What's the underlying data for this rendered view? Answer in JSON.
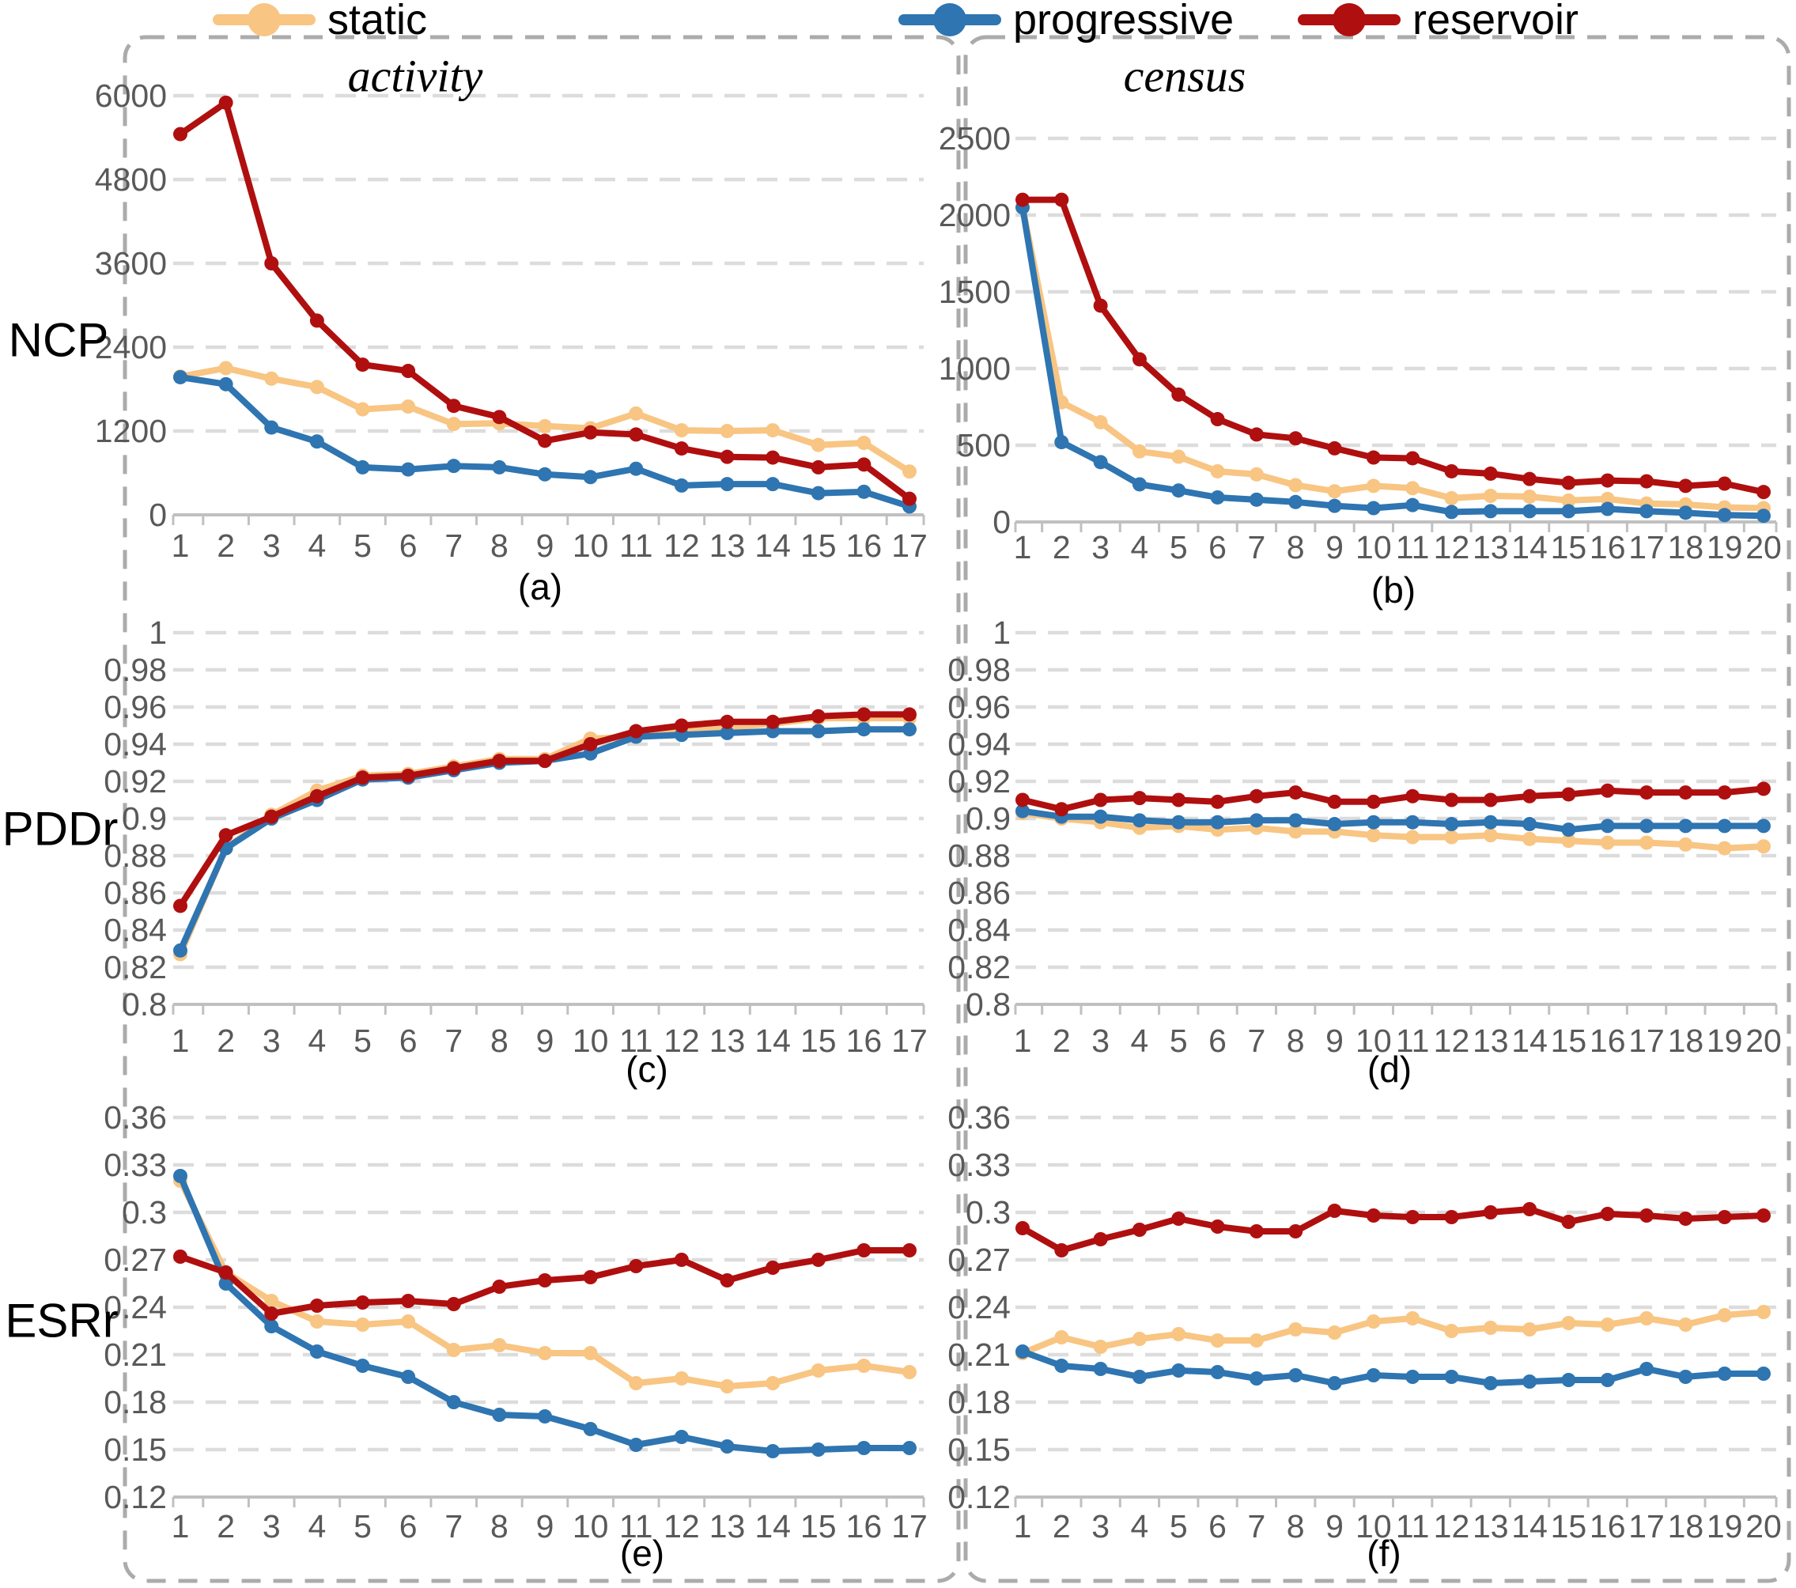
{
  "legend": {
    "position": "top",
    "items": [
      {
        "label": "static",
        "color": "#F8C583"
      },
      {
        "label": "progressive",
        "color": "#2E75B1"
      },
      {
        "label": "reservoir",
        "color": "#B00F0F"
      }
    ]
  },
  "panels": [
    {
      "title": "activity"
    },
    {
      "title": "census"
    }
  ],
  "row_labels": [
    "NCP",
    "PDDr",
    "ESRr"
  ],
  "colors": {
    "static": "#F8C583",
    "progressive": "#2E75B1",
    "reservoir": "#B00F0F",
    "gridline": "#DCDCDC",
    "axis": "#C0C0C0",
    "tick_text": "#595959",
    "panel_border": "#ABABAB"
  },
  "chart_data": [
    {
      "id": "a",
      "caption": "(a)",
      "type": "line",
      "panel": "activity",
      "metric": "NCP",
      "grid": true,
      "legend_position": "top",
      "x": [
        1,
        2,
        3,
        4,
        5,
        6,
        7,
        8,
        9,
        10,
        11,
        12,
        13,
        14,
        15,
        16,
        17
      ],
      "ylim": [
        0,
        6000
      ],
      "y_ticks": [
        6000,
        4800,
        3600,
        2400,
        1200,
        0
      ],
      "y_tick_labels": [
        "6000",
        "4800",
        "3600",
        "2400",
        "1200",
        "0"
      ],
      "series": [
        {
          "name": "static",
          "values": [
            1980,
            2100,
            1950,
            1830,
            1510,
            1550,
            1300,
            1310,
            1270,
            1240,
            1450,
            1210,
            1200,
            1210,
            1000,
            1030,
            620
          ]
        },
        {
          "name": "progressive",
          "values": [
            1970,
            1870,
            1250,
            1050,
            680,
            650,
            700,
            680,
            580,
            540,
            660,
            420,
            440,
            440,
            310,
            330,
            120
          ]
        },
        {
          "name": "reservoir",
          "values": [
            5450,
            5900,
            3600,
            2780,
            2150,
            2060,
            1560,
            1400,
            1060,
            1180,
            1150,
            950,
            830,
            820,
            680,
            720,
            230
          ]
        }
      ]
    },
    {
      "id": "b",
      "caption": "(b)",
      "type": "line",
      "panel": "census",
      "metric": "NCP",
      "grid": true,
      "legend_position": "top",
      "x": [
        1,
        2,
        3,
        4,
        5,
        6,
        7,
        8,
        9,
        10,
        11,
        12,
        13,
        14,
        15,
        16,
        17,
        18,
        19,
        20
      ],
      "ylim": [
        0,
        2500
      ],
      "y_ticks": [
        2500,
        2000,
        1500,
        1000,
        500,
        0
      ],
      "y_tick_labels": [
        "2500",
        "2000",
        "1500",
        "1000",
        "500",
        "0"
      ],
      "series": [
        {
          "name": "static",
          "values": [
            2050,
            780,
            650,
            460,
            425,
            330,
            310,
            240,
            200,
            235,
            220,
            155,
            170,
            165,
            140,
            150,
            120,
            115,
            95,
            90
          ]
        },
        {
          "name": "progressive",
          "values": [
            2050,
            520,
            390,
            245,
            205,
            160,
            145,
            130,
            105,
            90,
            110,
            65,
            70,
            70,
            70,
            85,
            70,
            60,
            45,
            40
          ]
        },
        {
          "name": "reservoir",
          "values": [
            2100,
            2100,
            1410,
            1060,
            830,
            670,
            570,
            545,
            480,
            420,
            415,
            330,
            315,
            280,
            255,
            270,
            265,
            235,
            250,
            195
          ]
        }
      ]
    },
    {
      "id": "c",
      "caption": "(c)",
      "type": "line",
      "panel": "activity",
      "metric": "PDDr",
      "grid": true,
      "legend_position": "top",
      "x": [
        1,
        2,
        3,
        4,
        5,
        6,
        7,
        8,
        9,
        10,
        11,
        12,
        13,
        14,
        15,
        16,
        17
      ],
      "ylim": [
        0.8,
        1.0
      ],
      "y_ticks": [
        1,
        0.98,
        0.96,
        0.94,
        0.92,
        0.9,
        0.88,
        0.86,
        0.84,
        0.82,
        0.8
      ],
      "y_tick_labels": [
        "1",
        "0.98",
        "0.96",
        "0.94",
        "0.92",
        "0.9",
        "0.88",
        "0.86",
        "0.84",
        "0.82",
        "0.8"
      ],
      "series": [
        {
          "name": "static",
          "values": [
            0.827,
            0.884,
            0.902,
            0.915,
            0.923,
            0.924,
            0.928,
            0.932,
            0.932,
            0.943,
            0.944,
            0.947,
            0.949,
            0.951,
            0.954,
            0.954,
            0.954
          ]
        },
        {
          "name": "progressive",
          "values": [
            0.829,
            0.884,
            0.9,
            0.91,
            0.921,
            0.922,
            0.926,
            0.93,
            0.931,
            0.935,
            0.944,
            0.945,
            0.946,
            0.947,
            0.947,
            0.948,
            0.948
          ]
        },
        {
          "name": "reservoir",
          "values": [
            0.853,
            0.891,
            0.901,
            0.912,
            0.922,
            0.923,
            0.927,
            0.931,
            0.931,
            0.94,
            0.947,
            0.95,
            0.952,
            0.952,
            0.955,
            0.956,
            0.956
          ]
        }
      ]
    },
    {
      "id": "d",
      "caption": "(d)",
      "type": "line",
      "panel": "census",
      "metric": "PDDr",
      "grid": true,
      "legend_position": "top",
      "x": [
        1,
        2,
        3,
        4,
        5,
        6,
        7,
        8,
        9,
        10,
        11,
        12,
        13,
        14,
        15,
        16,
        17,
        18,
        19,
        20
      ],
      "ylim": [
        0.8,
        1.0
      ],
      "y_ticks": [
        1,
        0.98,
        0.96,
        0.94,
        0.92,
        0.9,
        0.88,
        0.86,
        0.84,
        0.82,
        0.8
      ],
      "y_tick_labels": [
        "1",
        "0.98",
        "0.96",
        "0.94",
        "0.92",
        "0.9",
        "0.88",
        "0.86",
        "0.84",
        "0.82",
        "0.8"
      ],
      "series": [
        {
          "name": "static",
          "values": [
            0.903,
            0.9,
            0.898,
            0.895,
            0.896,
            0.894,
            0.895,
            0.893,
            0.893,
            0.891,
            0.89,
            0.89,
            0.891,
            0.889,
            0.888,
            0.887,
            0.887,
            0.886,
            0.884,
            0.885
          ]
        },
        {
          "name": "progressive",
          "values": [
            0.904,
            0.901,
            0.901,
            0.899,
            0.898,
            0.898,
            0.899,
            0.899,
            0.897,
            0.898,
            0.898,
            0.897,
            0.898,
            0.897,
            0.894,
            0.896,
            0.896,
            0.896,
            0.896,
            0.896
          ]
        },
        {
          "name": "reservoir",
          "values": [
            0.91,
            0.905,
            0.91,
            0.911,
            0.91,
            0.909,
            0.912,
            0.914,
            0.909,
            0.909,
            0.912,
            0.91,
            0.91,
            0.912,
            0.913,
            0.915,
            0.914,
            0.914,
            0.914,
            0.916
          ]
        }
      ]
    },
    {
      "id": "e",
      "caption": "(e)",
      "type": "line",
      "panel": "activity",
      "metric": "ESRr",
      "grid": true,
      "legend_position": "top",
      "x": [
        1,
        2,
        3,
        4,
        5,
        6,
        7,
        8,
        9,
        10,
        11,
        12,
        13,
        14,
        15,
        16,
        17
      ],
      "ylim": [
        0.12,
        0.36
      ],
      "y_ticks": [
        0.36,
        0.33,
        0.3,
        0.27,
        0.24,
        0.21,
        0.18,
        0.15,
        0.12
      ],
      "y_tick_labels": [
        "0.36",
        "0.33",
        "0.3",
        "0.27",
        "0.24",
        "0.21",
        "0.18",
        "0.15",
        "0.12"
      ],
      "series": [
        {
          "name": "static",
          "values": [
            0.32,
            0.262,
            0.244,
            0.231,
            0.229,
            0.231,
            0.213,
            0.216,
            0.211,
            0.211,
            0.192,
            0.195,
            0.19,
            0.192,
            0.2,
            0.203,
            0.199
          ]
        },
        {
          "name": "progressive",
          "values": [
            0.323,
            0.255,
            0.228,
            0.212,
            0.203,
            0.196,
            0.18,
            0.172,
            0.171,
            0.163,
            0.153,
            0.158,
            0.152,
            0.149,
            0.15,
            0.151,
            0.151
          ]
        },
        {
          "name": "reservoir",
          "values": [
            0.272,
            0.262,
            0.236,
            0.241,
            0.243,
            0.244,
            0.242,
            0.253,
            0.257,
            0.259,
            0.266,
            0.27,
            0.257,
            0.265,
            0.27,
            0.276,
            0.276
          ]
        }
      ]
    },
    {
      "id": "f",
      "caption": "(f)",
      "type": "line",
      "panel": "census",
      "metric": "ESRr",
      "grid": true,
      "legend_position": "top",
      "x": [
        1,
        2,
        3,
        4,
        5,
        6,
        7,
        8,
        9,
        10,
        11,
        12,
        13,
        14,
        15,
        16,
        17,
        18,
        19,
        20
      ],
      "ylim": [
        0.12,
        0.36
      ],
      "y_ticks": [
        0.36,
        0.33,
        0.3,
        0.27,
        0.24,
        0.21,
        0.18,
        0.15,
        0.12
      ],
      "y_tick_labels": [
        "0.36",
        "0.33",
        "0.3",
        "0.27",
        "0.24",
        "0.21",
        "0.18",
        "0.15",
        "0.12"
      ],
      "series": [
        {
          "name": "static",
          "values": [
            0.211,
            0.221,
            0.215,
            0.22,
            0.223,
            0.219,
            0.219,
            0.226,
            0.224,
            0.231,
            0.233,
            0.225,
            0.227,
            0.226,
            0.23,
            0.229,
            0.233,
            0.229,
            0.235,
            0.237
          ]
        },
        {
          "name": "progressive",
          "values": [
            0.212,
            0.203,
            0.201,
            0.196,
            0.2,
            0.199,
            0.195,
            0.197,
            0.192,
            0.197,
            0.196,
            0.196,
            0.192,
            0.193,
            0.194,
            0.194,
            0.201,
            0.196,
            0.198,
            0.198
          ]
        },
        {
          "name": "reservoir",
          "values": [
            0.29,
            0.276,
            0.283,
            0.289,
            0.296,
            0.291,
            0.288,
            0.288,
            0.301,
            0.298,
            0.297,
            0.297,
            0.3,
            0.302,
            0.294,
            0.299,
            0.298,
            0.296,
            0.297,
            0.298
          ]
        }
      ]
    }
  ]
}
